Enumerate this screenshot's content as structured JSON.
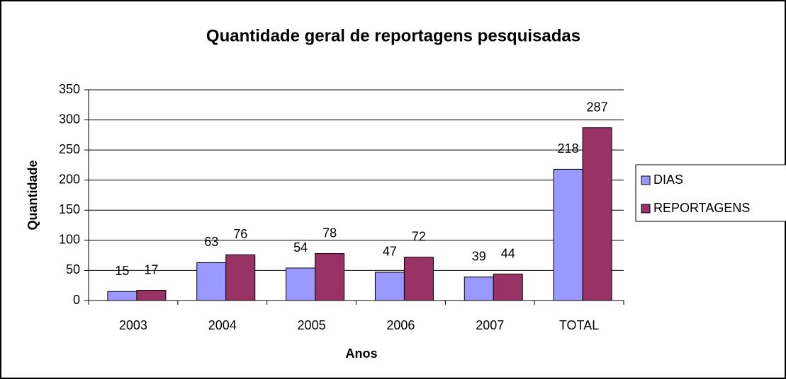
{
  "chart_data": {
    "type": "bar",
    "title": "Quantidade geral de reportagens pesquisadas",
    "xlabel": "Anos",
    "ylabel": "Quantidade",
    "categories": [
      "2003",
      "2004",
      "2005",
      "2006",
      "2007",
      "TOTAL"
    ],
    "series": [
      {
        "name": "DIAS",
        "color": "#9999ff",
        "values": [
          15,
          63,
          54,
          47,
          39,
          218
        ]
      },
      {
        "name": "REPORTAGENS",
        "color": "#993366",
        "values": [
          17,
          76,
          78,
          72,
          44,
          287
        ]
      }
    ],
    "ylim": [
      0,
      350
    ],
    "yticks": [
      0,
      50,
      100,
      150,
      200,
      250,
      300,
      350
    ],
    "grid": true,
    "legend": "right"
  }
}
